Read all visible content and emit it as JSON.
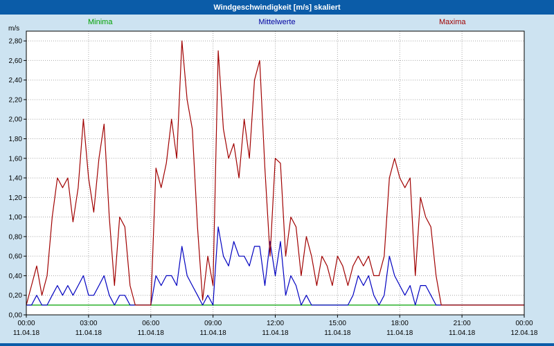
{
  "window": {
    "title": "Windgeschwindigkeit [m/s] skaliert"
  },
  "colors": {
    "title_bar": "#0b5ca8",
    "background": "#cde3f1",
    "plot_background": "#ffffff",
    "grid": "#a8a8a8",
    "axis": "#000000",
    "bottom_border": "#0b5ca8"
  },
  "legend": {
    "items": [
      {
        "label": "Minima",
        "color": "#00a000"
      },
      {
        "label": "Mittelwerte",
        "color": "#0000a0"
      },
      {
        "label": "Maxima",
        "color": "#a00000"
      }
    ]
  },
  "chart_data": {
    "type": "line",
    "title": "Windgeschwindigkeit [m/s] skaliert",
    "xlabel": "",
    "ylabel": "m/s",
    "ylim": [
      0,
      2.9
    ],
    "ytick_step": 0.2,
    "ytick_labels": [
      "0,00",
      "0,20",
      "0,40",
      "0,60",
      "0,80",
      "1,00",
      "1,20",
      "1,40",
      "1,60",
      "1,80",
      "2,00",
      "2,20",
      "2,40",
      "2,60",
      "2,80"
    ],
    "grid": true,
    "legend_position": "top",
    "x_start_hour": 0,
    "x_end_hour": 24,
    "x_step_hours": 0.25,
    "xticks": [
      {
        "hour": 0,
        "time": "00:00",
        "date": "11.04.18"
      },
      {
        "hour": 3,
        "time": "03:00",
        "date": "11.04.18"
      },
      {
        "hour": 6,
        "time": "06:00",
        "date": "11.04.18"
      },
      {
        "hour": 9,
        "time": "09:00",
        "date": "11.04.18"
      },
      {
        "hour": 12,
        "time": "12:00",
        "date": "11.04.18"
      },
      {
        "hour": 15,
        "time": "15:00",
        "date": "11.04.18"
      },
      {
        "hour": 18,
        "time": "18:00",
        "date": "11.04.18"
      },
      {
        "hour": 21,
        "time": "21:00",
        "date": "11.04.18"
      },
      {
        "hour": 24,
        "time": "00:00",
        "date": "12.04.18"
      }
    ],
    "series": [
      {
        "name": "Minima",
        "color": "#00a000",
        "values": [
          0.1,
          0.1,
          0.1,
          0.1,
          0.1,
          0.1,
          0.1,
          0.1,
          0.1,
          0.1,
          0.1,
          0.1,
          0.1,
          0.1,
          0.1,
          0.1,
          0.1,
          0.1,
          0.1,
          0.1,
          0.1,
          0.1,
          0.1,
          0.1,
          0.1,
          0.1,
          0.1,
          0.1,
          0.1,
          0.1,
          0.1,
          0.1,
          0.1,
          0.1,
          0.1,
          0.1,
          0.1,
          0.1,
          0.1,
          0.1,
          0.1,
          0.1,
          0.1,
          0.1,
          0.1,
          0.1,
          0.1,
          0.1,
          0.1,
          0.1,
          0.1,
          0.1,
          0.1,
          0.1,
          0.1,
          0.1,
          0.1,
          0.1,
          0.1,
          0.1,
          0.1,
          0.1,
          0.1,
          0.1,
          0.1,
          0.1,
          0.1,
          0.1,
          0.1,
          0.1,
          0.1,
          0.1,
          0.1,
          0.1,
          0.1,
          0.1,
          0.1,
          0.1,
          0.1,
          0.1,
          0.1,
          0.1,
          0.1,
          0.1,
          0.1,
          0.1,
          0.1,
          0.1,
          0.1,
          0.1,
          0.1,
          0.1,
          0.1,
          0.1,
          0.1,
          0.1,
          0.1
        ]
      },
      {
        "name": "Mittelwerte",
        "color": "#0000c0",
        "values": [
          0.1,
          0.1,
          0.2,
          0.1,
          0.1,
          0.2,
          0.3,
          0.2,
          0.3,
          0.2,
          0.3,
          0.4,
          0.2,
          0.2,
          0.3,
          0.4,
          0.2,
          0.1,
          0.2,
          0.2,
          0.1,
          0.1,
          0.1,
          0.1,
          0.1,
          0.4,
          0.3,
          0.4,
          0.4,
          0.3,
          0.7,
          0.4,
          0.3,
          0.2,
          0.1,
          0.2,
          0.1,
          0.9,
          0.6,
          0.5,
          0.75,
          0.6,
          0.6,
          0.5,
          0.7,
          0.7,
          0.3,
          0.75,
          0.4,
          0.75,
          0.2,
          0.4,
          0.3,
          0.1,
          0.2,
          0.1,
          0.1,
          0.1,
          0.1,
          0.1,
          0.1,
          0.1,
          0.1,
          0.2,
          0.4,
          0.3,
          0.4,
          0.2,
          0.1,
          0.2,
          0.6,
          0.4,
          0.3,
          0.2,
          0.3,
          0.1,
          0.3,
          0.3,
          0.2,
          0.1,
          0.1,
          0.1,
          0.1,
          0.1,
          0.1,
          0.1,
          0.1,
          0.1,
          0.1,
          0.1,
          0.1,
          0.1,
          0.1,
          0.1,
          0.1,
          0.1,
          0.1
        ]
      },
      {
        "name": "Maxima",
        "color": "#a00000",
        "values": [
          0.1,
          0.3,
          0.5,
          0.2,
          0.4,
          1.0,
          1.4,
          1.3,
          1.4,
          0.95,
          1.3,
          2.0,
          1.4,
          1.05,
          1.6,
          1.95,
          1.0,
          0.3,
          1.0,
          0.9,
          0.3,
          0.1,
          0.1,
          0.1,
          0.1,
          1.5,
          1.3,
          1.55,
          2.0,
          1.6,
          2.8,
          2.2,
          1.9,
          0.9,
          0.15,
          0.6,
          0.3,
          2.7,
          1.9,
          1.6,
          1.75,
          1.4,
          2.0,
          1.6,
          2.4,
          2.6,
          1.5,
          0.6,
          1.6,
          1.55,
          0.6,
          1.0,
          0.9,
          0.4,
          0.8,
          0.6,
          0.3,
          0.6,
          0.5,
          0.3,
          0.6,
          0.5,
          0.3,
          0.5,
          0.6,
          0.5,
          0.6,
          0.4,
          0.4,
          0.6,
          1.4,
          1.6,
          1.4,
          1.3,
          1.4,
          0.4,
          1.2,
          1.0,
          0.9,
          0.4,
          0.1,
          0.1,
          0.1,
          0.1,
          0.1,
          0.1,
          0.1,
          0.1,
          0.1,
          0.1,
          0.1,
          0.1,
          0.1,
          0.1,
          0.1,
          0.1,
          0.1
        ]
      }
    ]
  }
}
